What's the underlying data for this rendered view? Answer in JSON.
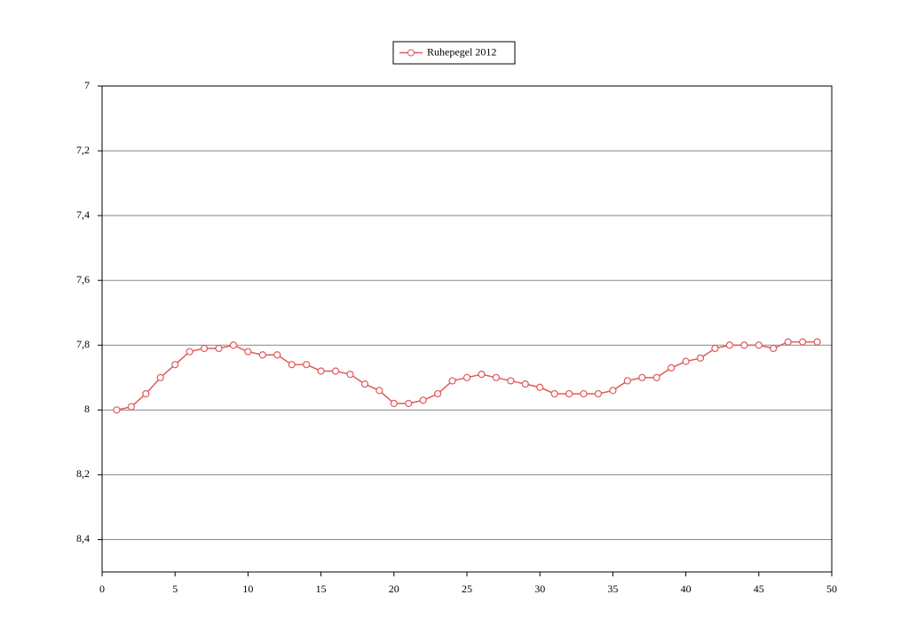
{
  "chart_data": {
    "type": "line",
    "x": [
      1,
      2,
      3,
      4,
      5,
      6,
      7,
      8,
      9,
      10,
      11,
      12,
      13,
      14,
      15,
      16,
      17,
      18,
      19,
      20,
      21,
      22,
      23,
      24,
      25,
      26,
      27,
      28,
      29,
      30,
      31,
      32,
      33,
      34,
      35,
      36,
      37,
      38,
      39,
      40,
      41,
      42,
      43,
      44,
      45,
      46,
      47,
      48,
      49
    ],
    "series": [
      {
        "name": "Ruhepegel 2012",
        "color": "#e05a5a",
        "values": [
          8.0,
          7.99,
          7.95,
          7.9,
          7.86,
          7.82,
          7.81,
          7.81,
          7.8,
          7.82,
          7.83,
          7.83,
          7.86,
          7.86,
          7.88,
          7.88,
          7.89,
          7.92,
          7.94,
          7.98,
          7.98,
          7.97,
          7.95,
          7.91,
          7.9,
          7.89,
          7.9,
          7.91,
          7.92,
          7.93,
          7.95,
          7.95,
          7.95,
          7.95,
          7.94,
          7.91,
          7.9,
          7.9,
          7.87,
          7.85,
          7.84,
          7.81,
          7.8,
          7.8,
          7.8,
          7.81,
          7.79,
          7.79,
          7.79
        ]
      }
    ],
    "xlim": [
      0,
      50
    ],
    "xticks": [
      0,
      5,
      10,
      15,
      20,
      25,
      30,
      35,
      40,
      45,
      50
    ],
    "ylim": [
      7,
      8.5
    ],
    "y_reversed": true,
    "yticks": [
      7,
      {
        "value": 7.2,
        "label": "7,2"
      },
      {
        "value": 7.4,
        "label": "7,4"
      },
      {
        "value": 7.6,
        "label": "7,6"
      },
      {
        "value": 7.8,
        "label": "7,8"
      },
      8,
      {
        "value": 8.2,
        "label": "8,2"
      },
      {
        "value": 8.4,
        "label": "8,4"
      }
    ],
    "grid": true,
    "legend": "top"
  }
}
